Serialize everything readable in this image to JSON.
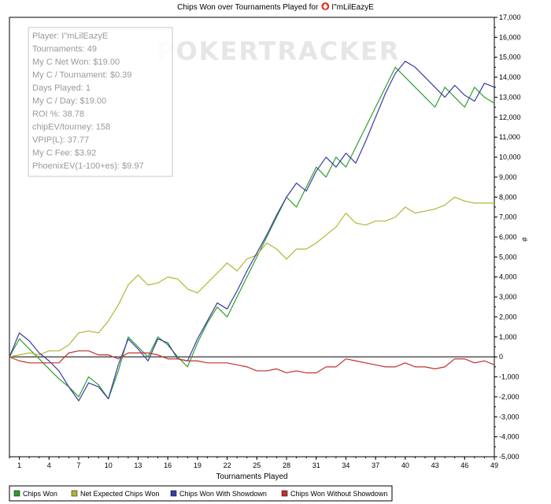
{
  "chart_data": {
    "type": "line",
    "title": "Chips Won over Tournaments Played for",
    "player_name": "I\"mLilEazyE",
    "xlabel": "Tournaments Played",
    "ylabel": "#",
    "xlim": [
      0,
      49
    ],
    "ylim": [
      -5000,
      17000
    ],
    "x_ticks": [
      1,
      4,
      7,
      10,
      13,
      16,
      19,
      22,
      25,
      28,
      31,
      34,
      37,
      40,
      43,
      46,
      49
    ],
    "y_ticks": [
      -5000,
      -4000,
      -3000,
      -2000,
      -1000,
      0,
      1000,
      2000,
      3000,
      4000,
      5000,
      6000,
      7000,
      8000,
      9000,
      10000,
      11000,
      12000,
      13000,
      14000,
      15000,
      16000,
      17000
    ],
    "y_tick_labels": [
      "-5,000",
      "-4,000",
      "-3,000",
      "-2,000",
      "-1,000",
      "0",
      "1,000",
      "2,000",
      "3,000",
      "4,000",
      "5,000",
      "6,000",
      "7,000",
      "8,000",
      "9,000",
      "10,000",
      "11,000",
      "12,000",
      "13,000",
      "14,000",
      "15,000",
      "16,000",
      "17,000"
    ],
    "grid": false,
    "legend_position": "bottom",
    "watermark": "POKERTRACKER",
    "x": [
      0,
      1,
      2,
      3,
      4,
      5,
      6,
      7,
      8,
      9,
      10,
      11,
      12,
      13,
      14,
      15,
      16,
      17,
      18,
      19,
      20,
      21,
      22,
      23,
      24,
      25,
      26,
      27,
      28,
      29,
      30,
      31,
      32,
      33,
      34,
      35,
      36,
      37,
      38,
      39,
      40,
      41,
      42,
      43,
      44,
      45,
      46,
      47,
      48,
      49
    ],
    "series": [
      {
        "name": "Chips Won",
        "color": "#2ca02c",
        "values": [
          0,
          900,
          400,
          -100,
          -600,
          -1100,
          -1500,
          -2000,
          -1000,
          -1400,
          -2100,
          -700,
          1000,
          500,
          0,
          1000,
          600,
          0,
          -500,
          700,
          1700,
          2500,
          2000,
          3000,
          4000,
          5000,
          6000,
          7000,
          8000,
          7500,
          8500,
          9500,
          9000,
          10000,
          9500,
          10500,
          11500,
          12500,
          13500,
          14500,
          14000,
          13500,
          13000,
          12500,
          13500,
          13000,
          12500,
          13500,
          13000,
          12700
        ]
      },
      {
        "name": "Net Expected Chips Won",
        "color": "#b5b535",
        "values": [
          0,
          100,
          200,
          100,
          300,
          300,
          600,
          1200,
          1300,
          1200,
          1800,
          2600,
          3600,
          4100,
          3600,
          3700,
          4000,
          3900,
          3400,
          3200,
          3700,
          4200,
          4700,
          4300,
          4900,
          5100,
          5700,
          5400,
          4900,
          5400,
          5400,
          5700,
          6100,
          6500,
          7200,
          6700,
          6600,
          6800,
          6800,
          7000,
          7500,
          7200,
          7300,
          7400,
          7600,
          8000,
          7800,
          7700,
          7700,
          7700
        ]
      },
      {
        "name": "Chips Won With Showdown",
        "color": "#3a3aa8",
        "values": [
          0,
          1200,
          800,
          200,
          -200,
          -700,
          -1500,
          -2200,
          -1300,
          -1500,
          -2100,
          -400,
          900,
          400,
          -200,
          900,
          700,
          -100,
          -200,
          900,
          1800,
          2700,
          2400,
          3300,
          4300,
          5200,
          6100,
          7100,
          8000,
          8700,
          8300,
          9300,
          10000,
          9500,
          10200,
          9700,
          10800,
          12000,
          13200,
          14200,
          14800,
          14500,
          14000,
          13500,
          13000,
          13600,
          13100,
          12800,
          13700,
          13500
        ]
      },
      {
        "name": "Chips Won Without Showdown",
        "color": "#c0322f",
        "values": [
          0,
          -200,
          -300,
          -300,
          -300,
          -300,
          200,
          300,
          300,
          100,
          100,
          -100,
          200,
          200,
          200,
          100,
          -100,
          -100,
          -200,
          -200,
          -300,
          -300,
          -300,
          -400,
          -500,
          -700,
          -700,
          -600,
          -800,
          -700,
          -800,
          -800,
          -500,
          -500,
          -100,
          -200,
          -300,
          -400,
          -500,
          -500,
          -300,
          -500,
          -500,
          -600,
          -500,
          -100,
          -100,
          -300,
          -200,
          -400
        ]
      }
    ]
  },
  "title_icon": "pokertracker-spade-icon",
  "stats_box": {
    "lines": [
      "Player: I\"mLilEazyE",
      "Tournaments: 49",
      "My C Net Won: $19.00",
      "My C / Tournament: $0.39",
      "Days Played: 1",
      "My C / Day: $19.00",
      "ROI %: 38.78",
      "chipEV/tourney: 158",
      "VPIP(L): 37.77",
      "My C Fee: $3.92",
      "PhoenixEV(1-100+es): $9.97"
    ]
  }
}
